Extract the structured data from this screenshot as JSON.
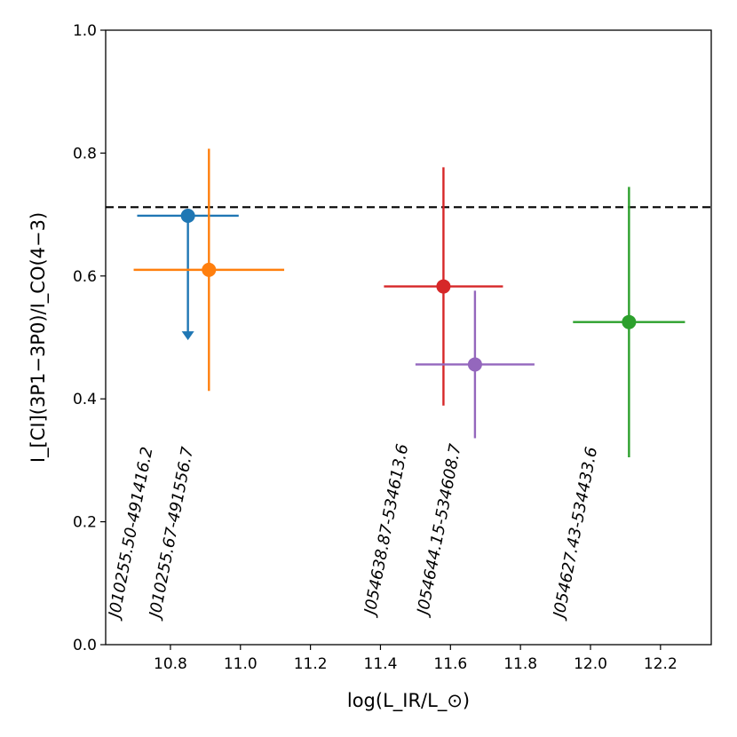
{
  "chart_data": {
    "type": "scatter",
    "title": "",
    "xlabel": "log(L_IR/L_⊙)",
    "ylabel": "I_[CI](3P1−3P0)/I_CO(4−3)",
    "xlim": [
      10.615,
      12.345
    ],
    "ylim": [
      0.0,
      1.0
    ],
    "x_ticks": [
      10.8,
      11.0,
      11.2,
      11.4,
      11.6,
      11.8,
      12.0,
      12.2
    ],
    "x_tick_labels": [
      "10.8",
      "11.0",
      "11.2",
      "11.4",
      "11.6",
      "11.8",
      "12.0",
      "12.2"
    ],
    "y_ticks": [
      0.0,
      0.2,
      0.4,
      0.6,
      0.8,
      1.0
    ],
    "y_tick_labels": [
      "0.0",
      "0.2",
      "0.4",
      "0.6",
      "0.8",
      "1.0"
    ],
    "reference_line": {
      "y": 0.712,
      "style": "dashed",
      "color": "#000000"
    },
    "series": [
      {
        "name": "J010255.50-491416.2",
        "label": "J010255.50-491416.2",
        "color": "#1f77b4",
        "x": 10.85,
        "y": 0.698,
        "xerr": [
          0.145,
          0.145
        ],
        "upper_limit": true,
        "arrow_to": 0.497,
        "label_y": 0.395
      },
      {
        "name": "J010255.67-491556.7",
        "label": "J010255.67-491556.7",
        "color": "#ff7f0e",
        "x": 10.91,
        "y": 0.61,
        "xerr": [
          0.215,
          0.215
        ],
        "yerr": [
          0.197,
          0.197
        ],
        "label_y": 0.395
      },
      {
        "name": "J054638.87-534613.6",
        "label": "J054638.87-534613.6",
        "color": "#d62728",
        "x": 11.58,
        "y": 0.583,
        "xerr": [
          0.17,
          0.17
        ],
        "yerr": [
          0.194,
          0.194
        ],
        "label_y": 0.4
      },
      {
        "name": "J054644.15-534608.7",
        "label": "J054644.15-534608.7",
        "color": "#9467bd",
        "x": 11.67,
        "y": 0.456,
        "xerr": [
          0.17,
          0.17
        ],
        "yerr": [
          0.12,
          0.12
        ],
        "label_y": 0.4
      },
      {
        "name": "J054627.43-534433.6",
        "label": "J054627.43-534433.6",
        "color": "#2ca02c",
        "x": 12.11,
        "y": 0.525,
        "xerr": [
          0.16,
          0.16
        ],
        "yerr": [
          0.22,
          0.22
        ],
        "label_y": 0.395
      }
    ]
  }
}
